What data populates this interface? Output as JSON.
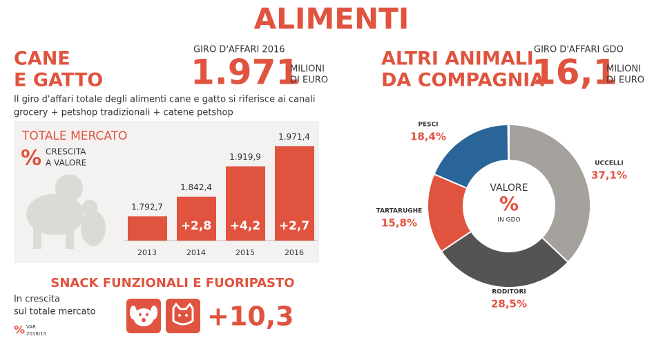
{
  "title": "ALIMENTI",
  "cane_gatto": {
    "heading": [
      "CANE",
      "E GATTO"
    ],
    "revenue_label": "GIRO D'AFFARI 2016",
    "revenue": 1971,
    "revenue_text": "1.971",
    "unit": [
      "MILIONI",
      "DI EURO"
    ],
    "description": [
      "Il giro d'affari totale degli alimenti cane e gatto si riferisce ai canali",
      "grocery + petshop tradizionali + catene petshop"
    ]
  },
  "altri_animali": {
    "heading": [
      "ALTRI ANIMALI",
      "DA COMPAGNIA"
    ],
    "revenue_label": "GIRO D'AFFARI GDO",
    "revenue": 16.1,
    "revenue_text": "16,1",
    "unit": [
      "MILIONI",
      "DI EURO"
    ]
  },
  "snack": {
    "title": "SNACK FUNZIONALI E FUORIPASTO",
    "text": [
      "In crescita",
      "sul totale mercato"
    ],
    "symbol": "%",
    "note": [
      "VAR",
      "2016/15"
    ],
    "value": 10.3,
    "value_label": "+10,3"
  },
  "chart_data": [
    {
      "type": "bar",
      "title": "TOTALE MERCATO",
      "symbol": "%",
      "legend": [
        "CRESCITA",
        "A VALORE"
      ],
      "categories": [
        "2013",
        "2014",
        "2015",
        "2016"
      ],
      "values": [
        1792.7,
        1842.4,
        1919.9,
        1971.4
      ],
      "value_labels": [
        "1.792,7",
        "1.842,4",
        "1.919,9",
        "1.971,4"
      ],
      "growth": [
        null,
        2.8,
        4.2,
        2.7
      ],
      "growth_labels": [
        null,
        "+2,8",
        "+4,2",
        "+2,7"
      ],
      "color": "#e0533f",
      "ylim": [
        1731,
        2000
      ]
    },
    {
      "type": "donut",
      "center_text": [
        "VALORE",
        "%",
        "IN GDO"
      ],
      "categories": [
        "UCCELLI",
        "RODITORI",
        "TARTARUGHE",
        "PESCI"
      ],
      "values": [
        37.1,
        28.5,
        15.8,
        18.4
      ],
      "value_labels": [
        "37,1%",
        "28,5%",
        "15,8%",
        "18,4%"
      ],
      "colors": [
        "#a5a19c",
        "#555453",
        "#e0533f",
        "#2a6599"
      ]
    }
  ]
}
